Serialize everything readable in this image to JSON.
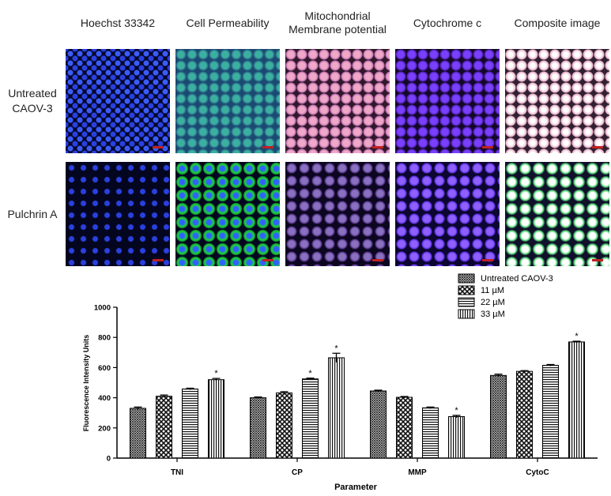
{
  "image_panel": {
    "columns": [
      "Hoechst 33342",
      "Cell Permeability",
      "Mitochondrial Membrane potential",
      "Cytochrome c",
      "Composite image"
    ],
    "rows": [
      "Untreated CAOV-3",
      "Pulchrin A"
    ]
  },
  "chart_data": {
    "type": "bar",
    "categories": [
      "TNI",
      "CP",
      "MMP",
      "CytoC"
    ],
    "series": [
      {
        "name": "Untreated CAOV-3",
        "color": "#000000",
        "pattern": "dots",
        "values": [
          330,
          400,
          445,
          548
        ],
        "errors": [
          8,
          5,
          5,
          8
        ],
        "annotations": [
          null,
          null,
          null,
          null
        ]
      },
      {
        "name": "11 µM",
        "color": "#000000",
        "pattern": "checker",
        "values": [
          410,
          432,
          403,
          575
        ],
        "errors": [
          8,
          8,
          5,
          5
        ],
        "annotations": [
          null,
          null,
          null,
          null
        ]
      },
      {
        "name": "22 µM",
        "color": "#000000",
        "pattern": "hlines",
        "values": [
          458,
          525,
          333,
          615
        ],
        "errors": [
          5,
          5,
          5,
          5
        ],
        "annotations": [
          null,
          "*",
          null,
          null
        ]
      },
      {
        "name": "33 µM",
        "color": "#000000",
        "pattern": "vlines",
        "values": [
          520,
          665,
          275,
          770
        ],
        "errors": [
          8,
          30,
          8,
          5
        ],
        "annotations": [
          "*",
          "*",
          "*",
          "*"
        ]
      }
    ],
    "ylim": [
      0,
      1000
    ],
    "yticks": [
      0,
      200,
      400,
      600,
      800,
      1000
    ],
    "y_label": "Fluorescence Intensity Units",
    "x_label": "Parameter",
    "legend": "upper right"
  }
}
